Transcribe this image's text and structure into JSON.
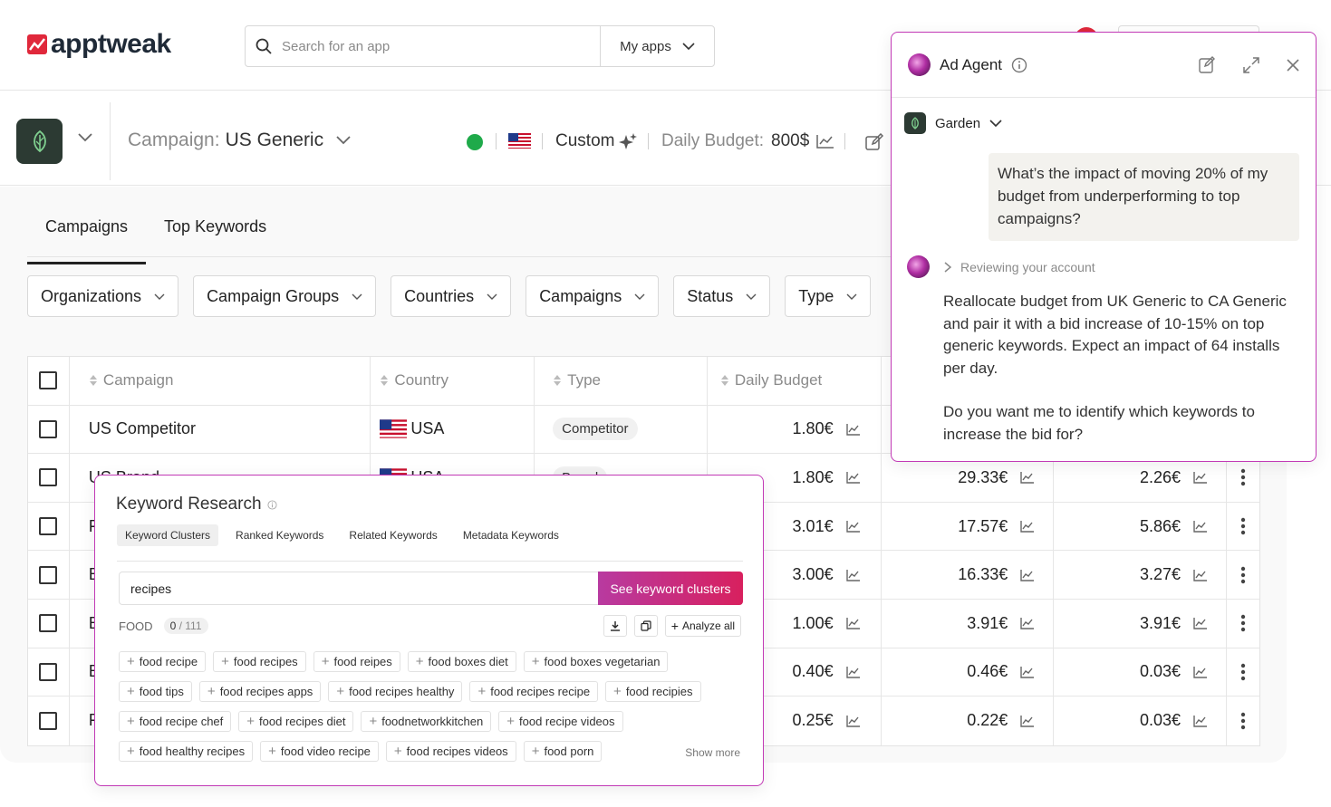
{
  "topbar": {
    "logo_text": "apptweak",
    "search_placeholder": "Search for an app",
    "my_apps_label": "My apps"
  },
  "campaign_header": {
    "campaign_prefix": "Campaign:",
    "campaign_name": "US Generic",
    "status_color": "#1faa4a",
    "custom_label": "Custom",
    "budget_prefix": "Daily Budget:",
    "budget_value": "800$"
  },
  "tabs": [
    {
      "label": "Campaigns",
      "active": true
    },
    {
      "label": "Top Keywords",
      "active": false
    }
  ],
  "filters": [
    "Organizations",
    "Campaign Groups",
    "Countries",
    "Campaigns",
    "Status",
    "Type"
  ],
  "table": {
    "headers": {
      "campaign": "Campaign",
      "country": "Country",
      "type": "Type",
      "daily_budget": "Daily Budget"
    },
    "rows": [
      {
        "campaign": "US Competitor",
        "country": "USA",
        "type": "Competitor",
        "budget": "1.80€",
        "m1": "",
        "m2": ""
      },
      {
        "campaign": "US Brand",
        "country": "USA",
        "type": "Brand",
        "budget": "1.80€",
        "m1": "29.33€",
        "m2": "2.26€"
      },
      {
        "campaign": "F",
        "country": "",
        "type": "",
        "budget": "3.01€",
        "m1": "17.57€",
        "m2": "5.86€"
      },
      {
        "campaign": "E",
        "country": "",
        "type": "",
        "budget": "3.00€",
        "m1": "16.33€",
        "m2": "3.27€"
      },
      {
        "campaign": "E",
        "country": "",
        "type": "",
        "budget": "1.00€",
        "m1": "3.91€",
        "m2": "3.91€"
      },
      {
        "campaign": "E",
        "country": "",
        "type": "",
        "budget": "0.40€",
        "m1": "0.46€",
        "m2": "0.03€"
      },
      {
        "campaign": "F",
        "country": "",
        "type": "",
        "budget": "0.25€",
        "m1": "0.22€",
        "m2": "0.03€"
      }
    ]
  },
  "agent": {
    "title": "Ad Agent",
    "app_name": "Garden",
    "user_message": "What’s the impact of moving 20% of my budget from underperforming to top campaigns?",
    "reviewing_label": "Reviewing your account",
    "reply_p1": "Reallocate budget from UK Generic to CA Generic and pair it with a bid increase of 10-15% on top generic keywords. Expect an impact of 64 installs per day.",
    "reply_p2": "Do you want me to identify which keywords to increase the bid for?",
    "accent_color": "#c23ab6"
  },
  "keyword_research": {
    "title": "Keyword Research",
    "tabs": [
      "Keyword Clusters",
      "Ranked Keywords",
      "Related Keywords",
      "Metadata Keywords"
    ],
    "search_value": "recipes",
    "button_label": "See keyword clusters",
    "cluster_label": "FOOD",
    "count_selected": "0",
    "count_total": "/ 111",
    "analyze_label": "Analyze all",
    "show_more_label": "Show more",
    "chips": [
      [
        "food recipe",
        "food recipes",
        "food reipes",
        "food boxes diet",
        "food boxes vegetarian"
      ],
      [
        "food tips",
        "food recipes apps",
        "food recipes healthy",
        "food recipes recipe",
        "food recipies"
      ],
      [
        "food recipe chef",
        "food recipes diet",
        "foodnetworkkitchen",
        "food recipe videos"
      ],
      [
        "food healthy recipes",
        "food video recipe",
        "food recipes videos",
        "food porn"
      ]
    ]
  }
}
